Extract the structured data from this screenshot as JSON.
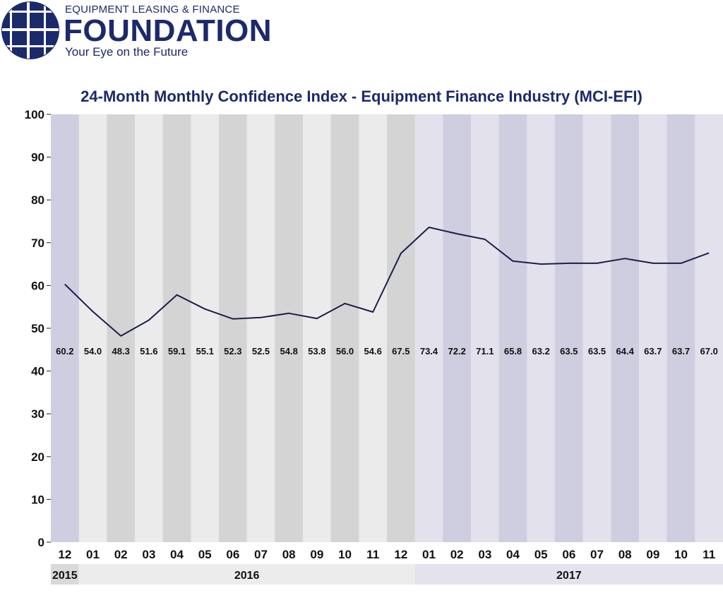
{
  "header": {
    "org_line": "EQUIPMENT LEASING & FINANCE",
    "org_name": "FOUNDATION",
    "tagline": "Your Eye on the Future",
    "brand_color": "#1b2a6b",
    "logo_icon": "globe-grid-icon"
  },
  "chart_data": {
    "type": "line",
    "title": "24-Month Monthly Confidence Index - Equipment Finance Industry (MCI-EFI)",
    "xlabel": "",
    "ylabel": "",
    "ylim": [
      0,
      100
    ],
    "yticks": [
      0,
      10,
      20,
      30,
      40,
      50,
      60,
      70,
      80,
      90,
      100
    ],
    "grid": false,
    "categories": [
      "12",
      "01",
      "02",
      "03",
      "04",
      "05",
      "06",
      "07",
      "08",
      "09",
      "10",
      "11",
      "12",
      "01",
      "02",
      "03",
      "04",
      "05",
      "06",
      "07",
      "08",
      "09",
      "10",
      "11"
    ],
    "year_groups": [
      {
        "label": "2015",
        "count": 1
      },
      {
        "label": "2016",
        "count": 12
      },
      {
        "label": "2017",
        "count": 11
      }
    ],
    "series": [
      {
        "values": [
          60.2,
          54.0,
          48.3,
          51.6,
          59.1,
          55.1,
          52.3,
          52.5,
          54.8,
          53.8,
          56.0,
          54.6,
          67.5,
          73.4,
          72.2,
          71.1,
          65.8,
          63.2,
          63.5,
          63.5,
          64.4,
          63.7,
          63.7,
          67.0
        ],
        "labels": [
          "60.2",
          "54.0",
          "48.3",
          "51.6",
          "59.1",
          "55.1",
          "52.3",
          "52.5",
          "54.8",
          "53.8",
          "56.0",
          "54.6",
          "67.5",
          "73.4",
          "72.2",
          "71.1",
          "65.8",
          "63.2",
          "63.5",
          "63.5",
          "64.4",
          "63.7",
          "63.7",
          "67.0"
        ],
        "color": "#1b1f4a"
      }
    ],
    "line_points": [
      60.3,
      53.9,
      48.2,
      51.9,
      57.8,
      54.5,
      52.2,
      52.5,
      53.5,
      52.3,
      55.8,
      53.8,
      67.5,
      73.6,
      72.1,
      70.8,
      65.7,
      65.0,
      65.2,
      65.2,
      66.3,
      65.2,
      65.2,
      67.6
    ],
    "colors": {
      "year_2015_dark": "#cfcde0",
      "year_2015_light": "#e1e0ea",
      "year_2016_dark": "#d4d4d4",
      "year_2016_light": "#ebebeb",
      "year_2017_dark": "#cfcde0",
      "year_2017_light": "#e3e2ec",
      "year_band_2015": "#d9d9d9",
      "year_band_2016": "#ececec",
      "year_band_2017": "#e4e3ed",
      "text": "#111111"
    }
  }
}
